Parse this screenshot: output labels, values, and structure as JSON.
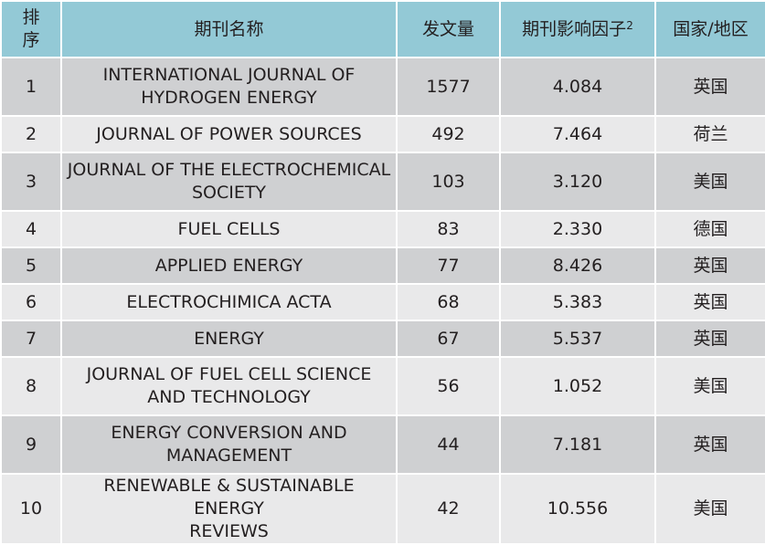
{
  "table": {
    "headers": {
      "rank_line1": "排",
      "rank_line2": "序",
      "name": "期刊名称",
      "count": "发文量",
      "impact": "期刊影响因子",
      "impact_sup": "2",
      "country": "国家/地区"
    },
    "rows": [
      {
        "rank": "1",
        "name_line1": "INTERNATIONAL JOURNAL OF",
        "name_line2": "HYDROGEN ENERGY",
        "count": "1577",
        "impact": "4.084",
        "country": "英国"
      },
      {
        "rank": "2",
        "name_line1": "JOURNAL OF POWER SOURCES",
        "name_line2": "",
        "count": "492",
        "impact": "7.464",
        "country": "荷兰"
      },
      {
        "rank": "3",
        "name_line1": "JOURNAL OF THE ELECTROCHEMICAL",
        "name_line2": "SOCIETY",
        "count": "103",
        "impact": "3.120",
        "country": "美国"
      },
      {
        "rank": "4",
        "name_line1": "FUEL CELLS",
        "name_line2": "",
        "count": "83",
        "impact": "2.330",
        "country": "德国"
      },
      {
        "rank": "5",
        "name_line1": "APPLIED ENERGY",
        "name_line2": "",
        "count": "77",
        "impact": "8.426",
        "country": "英国"
      },
      {
        "rank": "6",
        "name_line1": "ELECTROCHIMICA ACTA",
        "name_line2": "",
        "count": "68",
        "impact": "5.383",
        "country": "英国"
      },
      {
        "rank": "7",
        "name_line1": "ENERGY",
        "name_line2": "",
        "count": "67",
        "impact": "5.537",
        "country": "英国"
      },
      {
        "rank": "8",
        "name_line1": "JOURNAL OF FUEL CELL SCIENCE",
        "name_line2": "AND TECHNOLOGY",
        "count": "56",
        "impact": "1.052",
        "country": "美国"
      },
      {
        "rank": "9",
        "name_line1": "ENERGY CONVERSION AND",
        "name_line2": "MANAGEMENT",
        "count": "44",
        "impact": "7.181",
        "country": "英国"
      },
      {
        "rank": "10",
        "name_line1": "RENEWABLE & SUSTAINABLE ENERGY",
        "name_line2": "REVIEWS",
        "count": "42",
        "impact": "10.556",
        "country": "美国"
      }
    ]
  }
}
